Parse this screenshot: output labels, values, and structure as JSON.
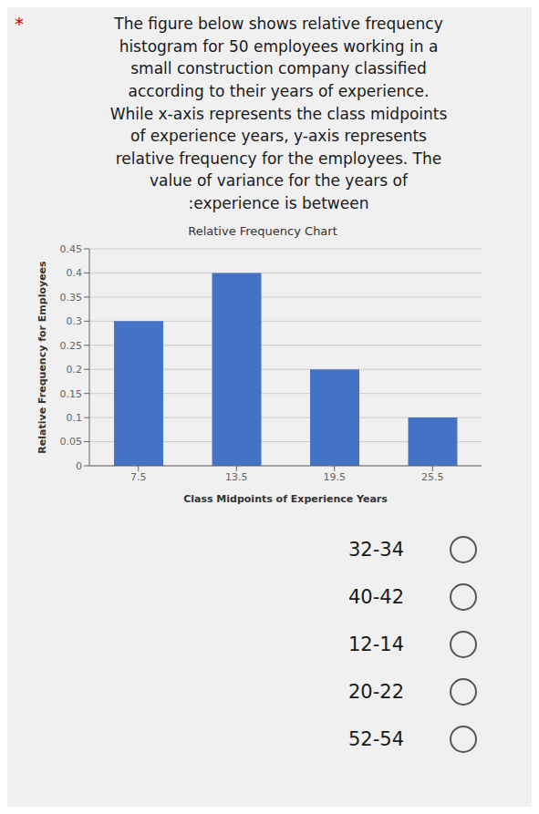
{
  "bullet": "*",
  "text": "The figure below shows relative frequency\nhistogram for 50 employees working in a\nsmall construction company classified\naccording to their years of experience.\nWhile x-axis represents the class midpoints\nof experience years, y-axis represents\nrelative frequency for the employees. The\nvalue of variance for the years of\n:experience is between",
  "options": [
    "32-34",
    "40-42",
    "12-14",
    "20-22",
    "52-54"
  ],
  "chart_data": {
    "type": "bar",
    "title": "Relative Frequency Chart",
    "x_label": "Class Midpoints of Experience Years",
    "y_label": "Relative Frequency for Employees",
    "x": [
      7.5,
      13.5,
      19.5,
      25.5
    ],
    "values": [
      0.3,
      0.4,
      0.2,
      0.1
    ],
    "color": "#4472c4",
    "xlim": [
      4.5,
      28.5
    ],
    "xticks": [
      7.5,
      13.5,
      19.5,
      25.5
    ],
    "ylim": [
      0,
      0.45
    ],
    "yticks": [
      0,
      0.05,
      0.1,
      0.15,
      0.2,
      0.25,
      0.3,
      0.35,
      0.4,
      0.45
    ],
    "grid": true
  }
}
